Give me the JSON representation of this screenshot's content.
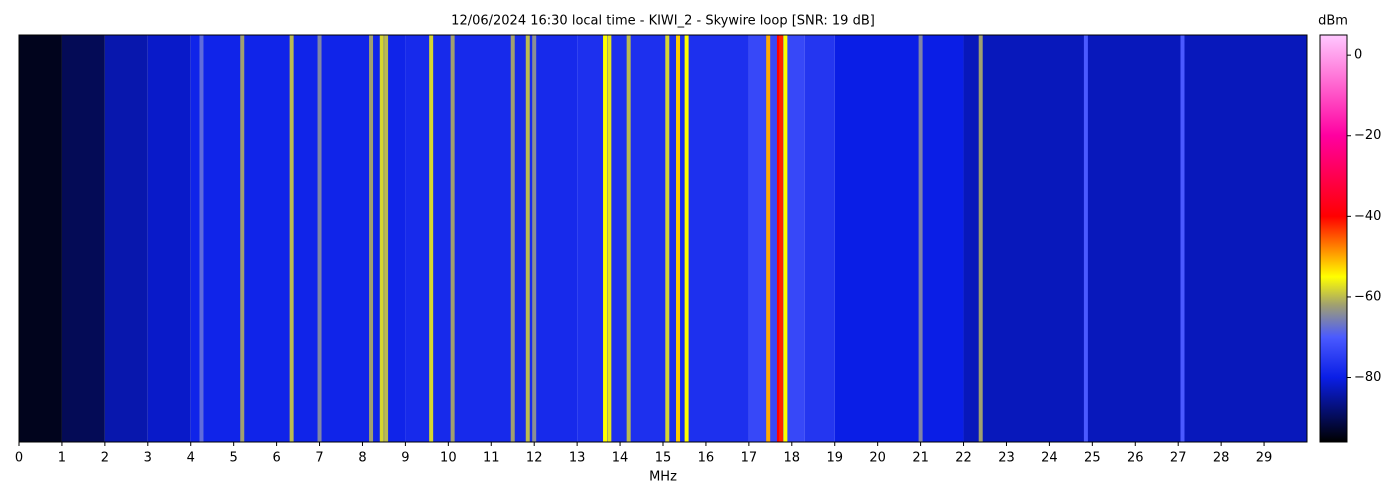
{
  "chart_data": {
    "type": "heatmap",
    "title": "12/06/2024 16:30 local time - KIWI_2 - Skywire loop [SNR: 19 dB]",
    "xlabel": "MHz",
    "colorbar_label": "dBm",
    "xlim": [
      0,
      30
    ],
    "xticks": [
      0,
      1,
      2,
      3,
      4,
      5,
      6,
      7,
      8,
      9,
      10,
      11,
      12,
      13,
      14,
      15,
      16,
      17,
      18,
      19,
      20,
      21,
      22,
      23,
      24,
      25,
      26,
      27,
      28,
      29
    ],
    "clim": [
      -96,
      5
    ],
    "cticks": [
      0,
      {
        "value": -20,
        "label": "−20"
      },
      {
        "value": -40,
        "label": "−40"
      },
      {
        "value": -60,
        "label": "−60"
      },
      {
        "value": -80,
        "label": "−80"
      }
    ],
    "colormap": [
      {
        "value": -96,
        "color": "#000000"
      },
      {
        "value": -80,
        "color": "#0a1ee6"
      },
      {
        "value": -70,
        "color": "#4a5aff"
      },
      {
        "value": -62,
        "color": "#a0a070"
      },
      {
        "value": -55,
        "color": "#ffff00"
      },
      {
        "value": -40,
        "color": "#ff0000"
      },
      {
        "value": -20,
        "color": "#ff00a0"
      },
      {
        "value": 5,
        "color": "#ffc8ff"
      }
    ],
    "background": {
      "bins": [
        0,
        1,
        2,
        3,
        4,
        9,
        13,
        17,
        18.3,
        19,
        22,
        30
      ],
      "values": [
        -94,
        -90,
        -84,
        -82,
        -79,
        -78,
        -77,
        -73,
        -76,
        -80,
        -83
      ]
    },
    "signals": {
      "x": [
        4.25,
        5.2,
        6.35,
        7.0,
        8.2,
        8.45,
        8.55,
        9.6,
        10.1,
        11.5,
        11.85,
        12.0,
        13.65,
        13.75,
        14.2,
        15.1,
        15.35,
        15.55,
        17.45,
        17.7,
        17.75,
        17.85,
        21.0,
        22.4,
        24.85,
        27.1
      ],
      "values": [
        -68,
        -62,
        -60,
        -65,
        -62,
        -58,
        -60,
        -58,
        -62,
        -62,
        -60,
        -64,
        -55,
        -57,
        -60,
        -58,
        -52,
        -55,
        -50,
        -40,
        -42,
        -55,
        -65,
        -62,
        -70,
        -70
      ]
    }
  }
}
